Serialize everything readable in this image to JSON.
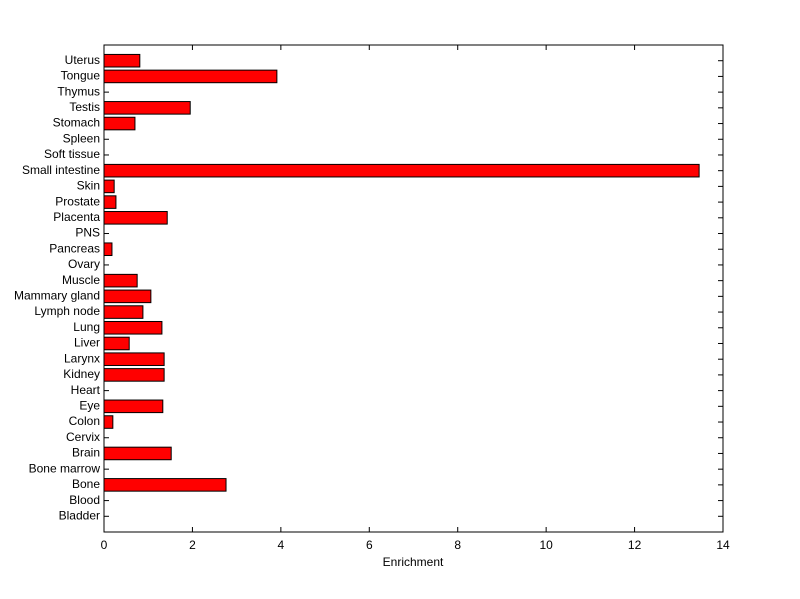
{
  "chart_data": {
    "type": "barh",
    "xlabel": "Enrichment",
    "categories": [
      "Bladder",
      "Blood",
      "Bone",
      "Bone marrow",
      "Brain",
      "Cervix",
      "Colon",
      "Eye",
      "Heart",
      "Kidney",
      "Larynx",
      "Liver",
      "Lung",
      "Lymph node",
      "Mammary gland",
      "Muscle",
      "Ovary",
      "Pancreas",
      "PNS",
      "Placenta",
      "Prostate",
      "Skin",
      "Small intestine",
      "Soft tissue",
      "Spleen",
      "Stomach",
      "Testis",
      "Thymus",
      "Tongue",
      "Uterus"
    ],
    "values": [
      0,
      0,
      2.76,
      0,
      1.52,
      0,
      0.2,
      1.33,
      0,
      1.36,
      1.36,
      0.57,
      1.31,
      0.88,
      1.06,
      0.75,
      0,
      0.18,
      0,
      1.43,
      0.27,
      0.23,
      13.46,
      0,
      0,
      0.7,
      1.95,
      0,
      3.91,
      0.81
    ],
    "color": "#ff0000",
    "xlim": [
      0,
      14
    ],
    "xticks": [
      0,
      2,
      4,
      6,
      8,
      10,
      12,
      14
    ],
    "grid": false
  }
}
